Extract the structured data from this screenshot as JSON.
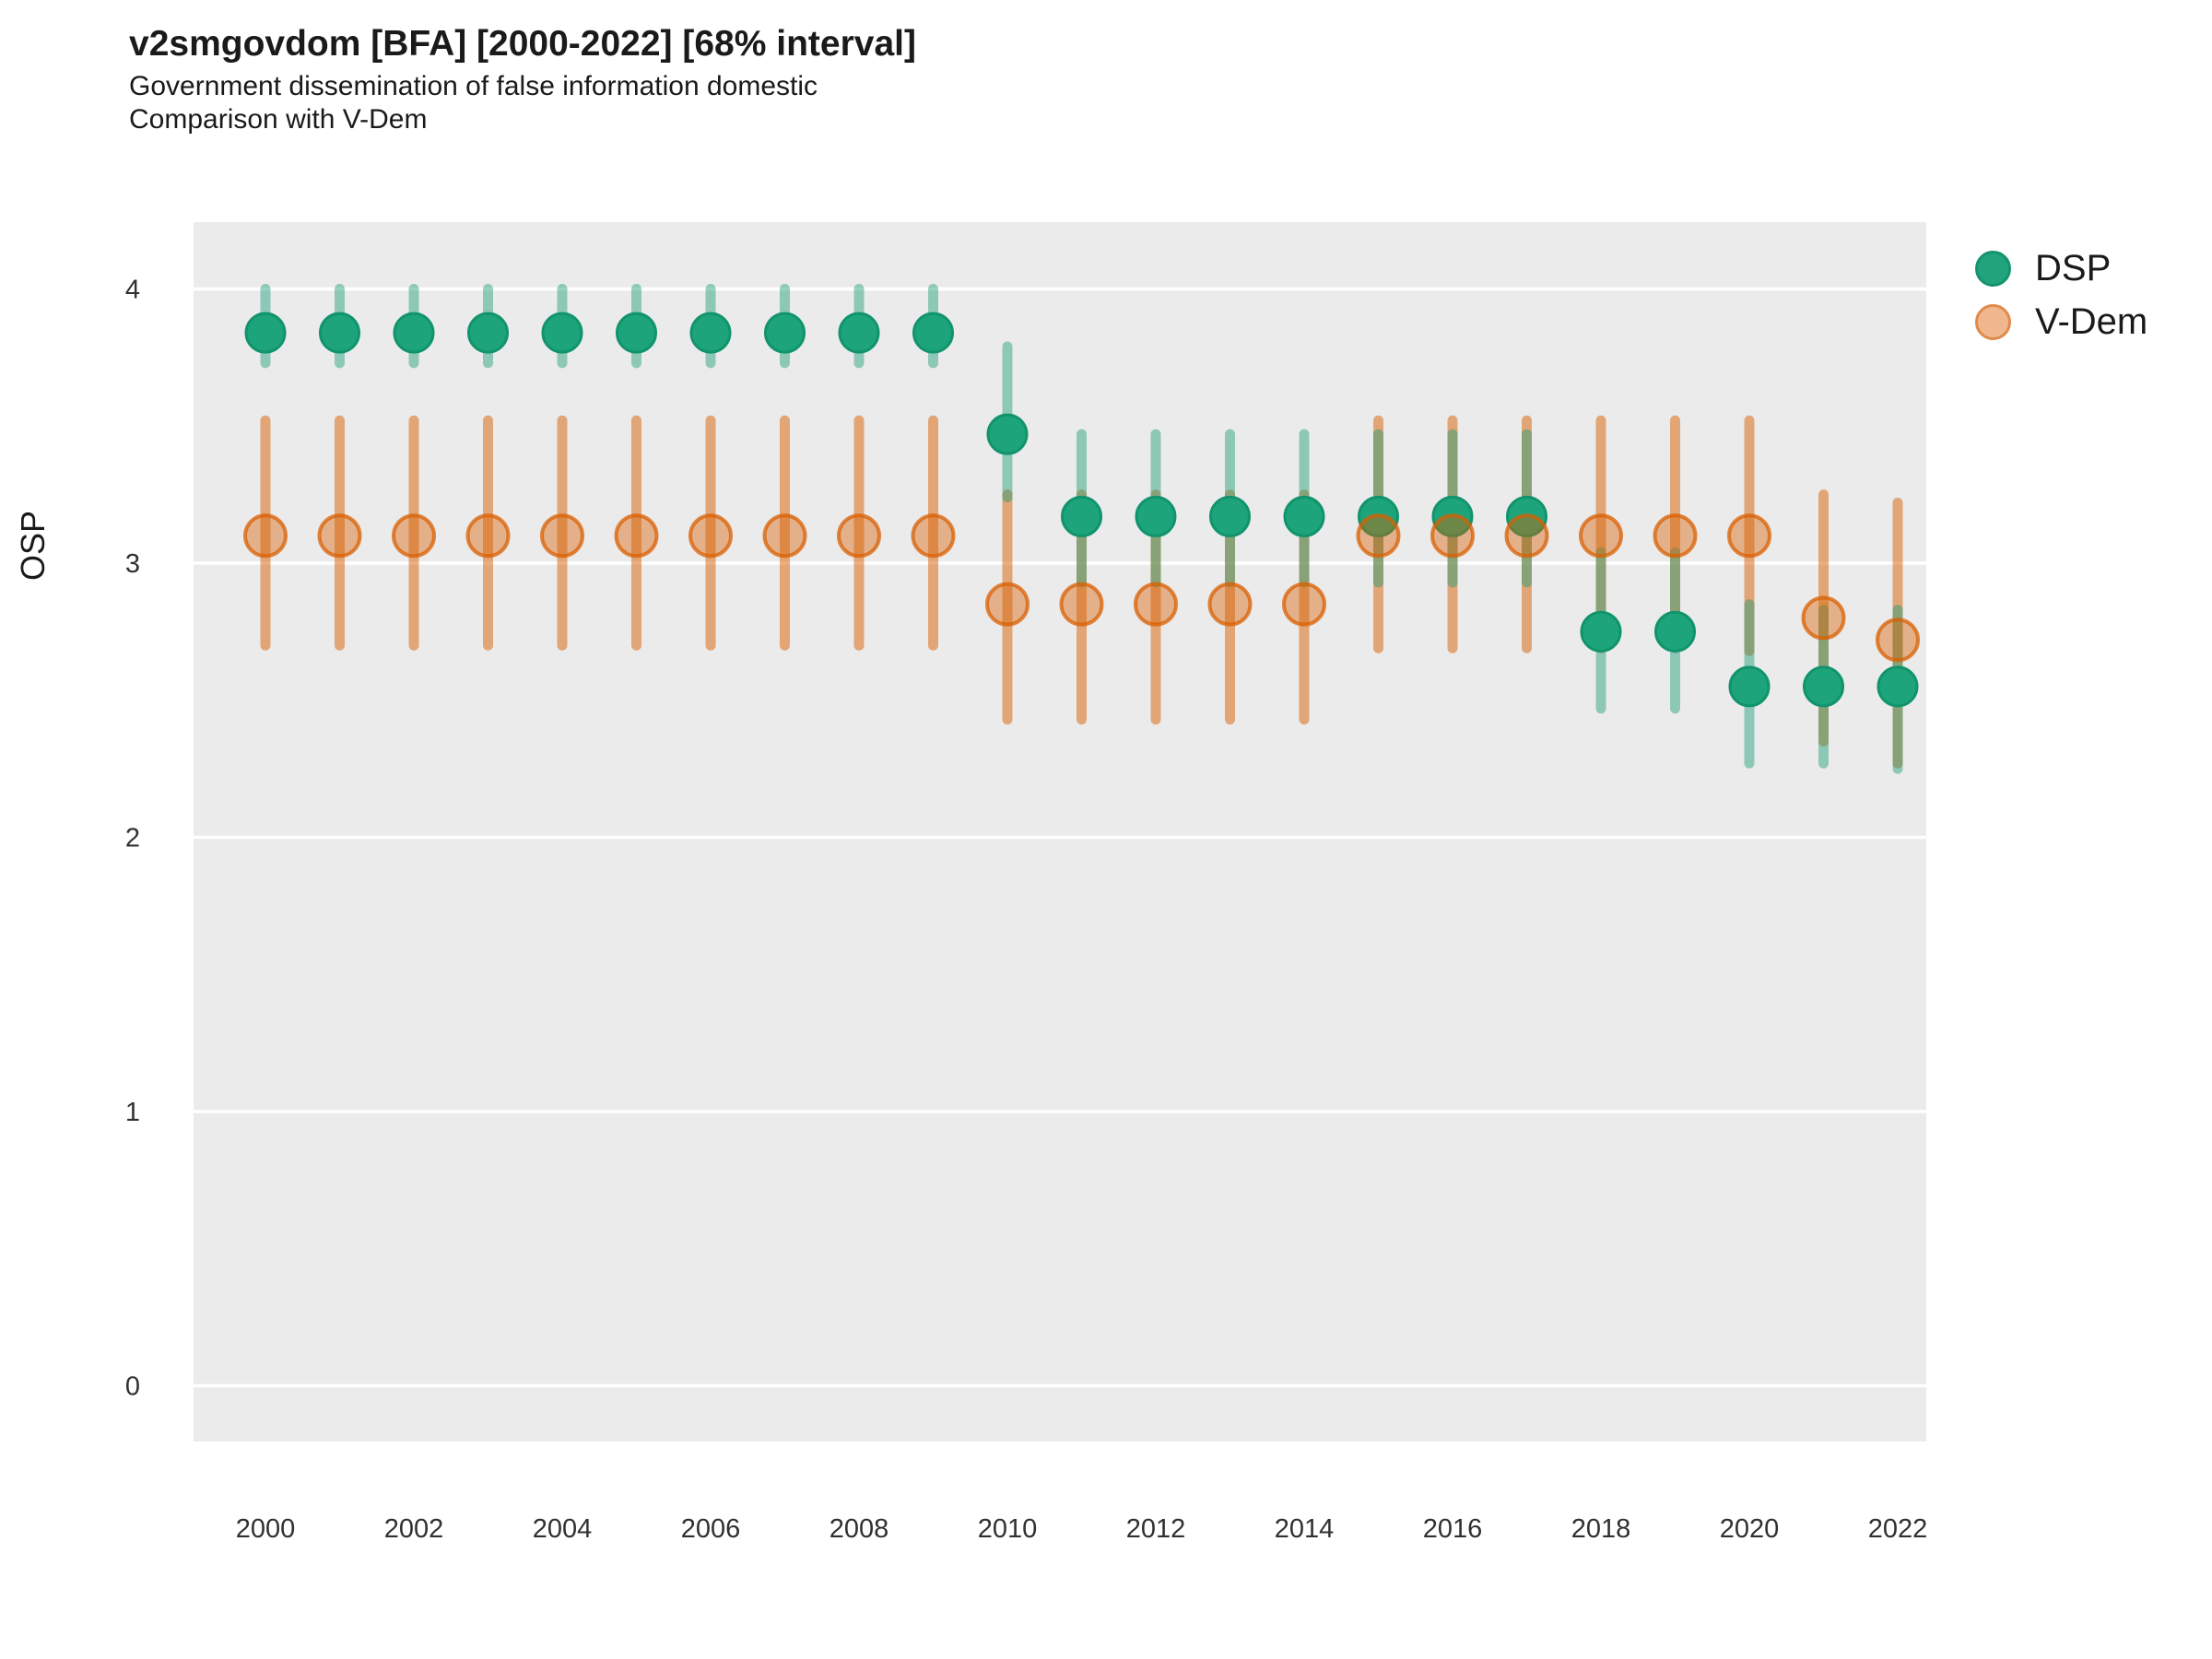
{
  "header": {
    "title": "v2smgovdom [BFA] [2000-2022] [68% interval]",
    "subtitle1": "Government dissemination of false information domestic",
    "subtitle2": "Comparison with V-Dem"
  },
  "legend": {
    "items": [
      {
        "label": "DSP",
        "color": "#1B9E77"
      },
      {
        "label": "V-Dem",
        "color": "#D95F02"
      }
    ]
  },
  "axes": {
    "y_title": "OSP",
    "y_tick_labels": [
      "4",
      "3",
      "2",
      "1",
      "0"
    ],
    "y_tick_values": [
      4,
      3,
      2,
      1,
      0
    ],
    "x_tick_labels": [
      "2000",
      "2002",
      "2004",
      "2006",
      "2008",
      "2010",
      "2012",
      "2014",
      "2016",
      "2018",
      "2020",
      "2022"
    ],
    "x_tick_values": [
      2000,
      2002,
      2004,
      2006,
      2008,
      2010,
      2012,
      2014,
      2016,
      2018,
      2020,
      2022
    ]
  },
  "colors": {
    "panel_bg": "#EBEBEB",
    "gridline": "#FFFFFF",
    "dsp_green": "#1EA47B",
    "dsp_green_stroke": "#11946C",
    "vdem_orange": "#D95F02",
    "tick_text": "#303030"
  },
  "chart_data": {
    "type": "scatter",
    "title": "v2smgovdom [BFA] [2000-2022] [68% interval]",
    "subtitle": "Government dissemination of false information domestic — Comparison with V-Dem",
    "xlabel": "",
    "ylabel": "OSP",
    "ylim": [
      -0.2,
      4.25
    ],
    "xlim": [
      1999,
      2022.4
    ],
    "grid": "major-horizontal-white-on-grey",
    "legend_position": "right-top",
    "interval_note": "68% interval point-range plot",
    "x": [
      2000,
      2001,
      2002,
      2003,
      2004,
      2005,
      2006,
      2007,
      2008,
      2009,
      2010,
      2011,
      2012,
      2013,
      2014,
      2015,
      2016,
      2017,
      2018,
      2019,
      2020,
      2021,
      2022
    ],
    "series": [
      {
        "name": "V-Dem",
        "color": "#D95F02",
        "values": [
          3.1,
          3.1,
          3.1,
          3.1,
          3.1,
          3.1,
          3.1,
          3.1,
          3.1,
          3.1,
          2.85,
          2.85,
          2.85,
          2.85,
          2.85,
          3.1,
          3.1,
          3.1,
          3.1,
          3.1,
          3.1,
          2.8,
          2.72
        ],
        "lower": [
          2.7,
          2.7,
          2.7,
          2.7,
          2.7,
          2.7,
          2.7,
          2.7,
          2.7,
          2.7,
          2.43,
          2.43,
          2.43,
          2.43,
          2.43,
          2.69,
          2.69,
          2.69,
          2.69,
          2.69,
          2.68,
          2.35,
          2.27
        ],
        "upper": [
          3.52,
          3.52,
          3.52,
          3.52,
          3.52,
          3.52,
          3.52,
          3.52,
          3.52,
          3.52,
          3.25,
          3.25,
          3.25,
          3.25,
          3.25,
          3.52,
          3.52,
          3.52,
          3.52,
          3.52,
          3.52,
          3.25,
          3.22
        ]
      },
      {
        "name": "DSP",
        "color": "#1B9E77",
        "values": [
          3.84,
          3.84,
          3.84,
          3.84,
          3.84,
          3.84,
          3.84,
          3.84,
          3.84,
          3.84,
          3.47,
          3.17,
          3.17,
          3.17,
          3.17,
          3.17,
          3.17,
          3.17,
          2.75,
          2.75,
          2.55,
          2.55,
          2.55
        ],
        "lower": [
          3.73,
          3.73,
          3.73,
          3.73,
          3.73,
          3.73,
          3.73,
          3.73,
          3.73,
          3.73,
          3.24,
          2.93,
          2.93,
          2.93,
          2.93,
          2.93,
          2.93,
          2.93,
          2.47,
          2.47,
          2.27,
          2.27,
          2.25
        ],
        "upper": [
          4.0,
          4.0,
          4.0,
          4.0,
          4.0,
          4.0,
          4.0,
          4.0,
          4.0,
          4.0,
          3.79,
          3.47,
          3.47,
          3.47,
          3.47,
          3.47,
          3.47,
          3.47,
          3.04,
          3.04,
          2.85,
          2.83,
          2.83
        ]
      }
    ]
  }
}
